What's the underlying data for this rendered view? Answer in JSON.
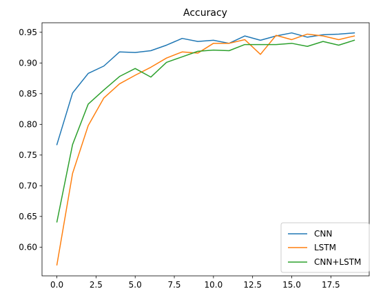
{
  "chart_data": {
    "type": "line",
    "title": "Accuracy",
    "xlabel": "",
    "ylabel": "",
    "xlim": [
      -0.95,
      19.95
    ],
    "ylim": [
      0.5532,
      0.9655
    ],
    "xticks": [
      0.0,
      2.5,
      5.0,
      7.5,
      10.0,
      12.5,
      15.0,
      17.5
    ],
    "xtick_labels": [
      "0.0",
      "2.5",
      "5.0",
      "7.5",
      "10.0",
      "12.5",
      "15.0",
      "17.5"
    ],
    "yticks": [
      0.6,
      0.65,
      0.7,
      0.75,
      0.8,
      0.85,
      0.9,
      0.95
    ],
    "ytick_labels": [
      "0.60",
      "0.65",
      "0.70",
      "0.75",
      "0.80",
      "0.85",
      "0.90",
      "0.95"
    ],
    "grid": false,
    "legend_position": "bottom-right",
    "x": [
      0,
      1,
      2,
      3,
      4,
      5,
      6,
      7,
      8,
      9,
      10,
      11,
      12,
      13,
      14,
      15,
      16,
      17,
      18,
      19
    ],
    "series": [
      {
        "name": "CNN",
        "color": "#1f77b4",
        "values": [
          0.767,
          0.851,
          0.883,
          0.895,
          0.918,
          0.917,
          0.92,
          0.929,
          0.94,
          0.935,
          0.937,
          0.932,
          0.944,
          0.937,
          0.944,
          0.949,
          0.942,
          0.946,
          0.947,
          0.949
        ]
      },
      {
        "name": "LSTM",
        "color": "#ff7f0e",
        "values": [
          0.571,
          0.72,
          0.798,
          0.843,
          0.866,
          0.88,
          0.893,
          0.908,
          0.918,
          0.916,
          0.932,
          0.932,
          0.938,
          0.914,
          0.945,
          0.938,
          0.947,
          0.944,
          0.938,
          0.944
        ]
      },
      {
        "name": "CNN+LSTM",
        "color": "#2ca02c",
        "values": [
          0.641,
          0.767,
          0.833,
          0.856,
          0.878,
          0.891,
          0.877,
          0.901,
          0.91,
          0.919,
          0.921,
          0.92,
          0.93,
          0.93,
          0.93,
          0.932,
          0.927,
          0.935,
          0.929,
          0.937
        ]
      }
    ]
  }
}
